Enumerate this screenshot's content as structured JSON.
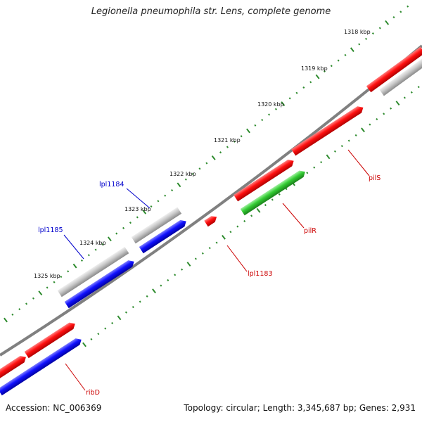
{
  "title": "Legionella pneumophila str. Lens, complete genome",
  "footer": {
    "accession": "Accession: NC_006369",
    "summary": "Topology: circular; Length: 3,345,687 bp; Genes: 2,931"
  },
  "colors": {
    "background": "#ffffff",
    "backbone": "#808080",
    "tick": "#2e8b2e",
    "red": "#ff0000",
    "blue": "#0000ff",
    "green": "#33cc33",
    "gray": "#c8c8c8",
    "red_label": "#cc0000",
    "blue_label": "#0000cc"
  },
  "ticks": [
    "1318 kbp",
    "1319 kbp",
    "1320 kbp",
    "1321 kbp",
    "1322 kbp",
    "1323 kbp",
    "1324 kbp",
    "1325 kbp"
  ],
  "gene_labels": [
    "lpl1184",
    "lpl1185",
    "pilS",
    "pilR",
    "lpl1183",
    "ribD"
  ]
}
